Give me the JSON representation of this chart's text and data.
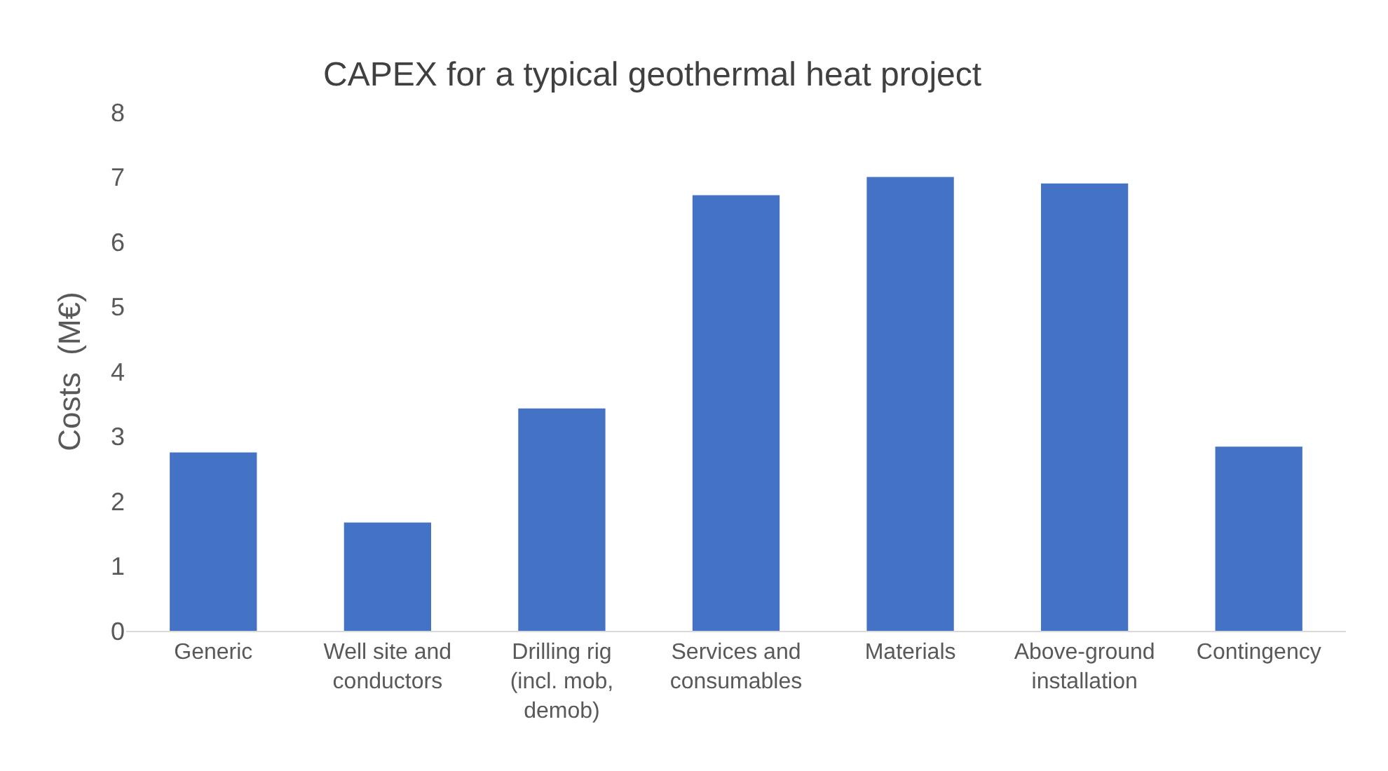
{
  "chart_data": {
    "type": "bar",
    "title": "CAPEX for a typical geothermal heat project",
    "ylabel": "Costs  (M€)",
    "categories": [
      "Generic",
      "Well site and conductors",
      "Drilling rig (incl. mob, demob)",
      "Services and consumables",
      "Materials",
      "Above-ground installation",
      "Contingency"
    ],
    "values": [
      2.75,
      1.67,
      3.43,
      6.72,
      7.0,
      6.9,
      2.84
    ],
    "color": "#4472c4",
    "ylim": [
      0,
      8
    ],
    "yticks": [
      0,
      1,
      2,
      3,
      4,
      5,
      6,
      7,
      8
    ]
  }
}
